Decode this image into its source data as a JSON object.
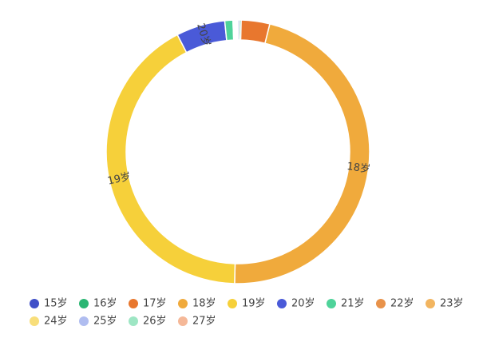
{
  "chart_data": {
    "type": "pie",
    "categories": [
      "15岁",
      "16岁",
      "17岁",
      "18岁",
      "19岁",
      "20岁",
      "21岁",
      "22岁",
      "23岁",
      "24岁",
      "25岁",
      "26岁",
      "27岁"
    ],
    "values": [
      0.2,
      0.2,
      3.5,
      46.5,
      42,
      6,
      1,
      0.1,
      0.1,
      0.1,
      0.1,
      0.1,
      0.1
    ],
    "colors": [
      "#4050c8",
      "#2bb673",
      "#e8772e",
      "#f0aa3c",
      "#f6d03a",
      "#4a5ad8",
      "#4fd39a",
      "#e8924a",
      "#f2b560",
      "#f8de7a",
      "#b0bdf0",
      "#9ee6c4",
      "#f5b898"
    ],
    "legend": "bottom"
  }
}
